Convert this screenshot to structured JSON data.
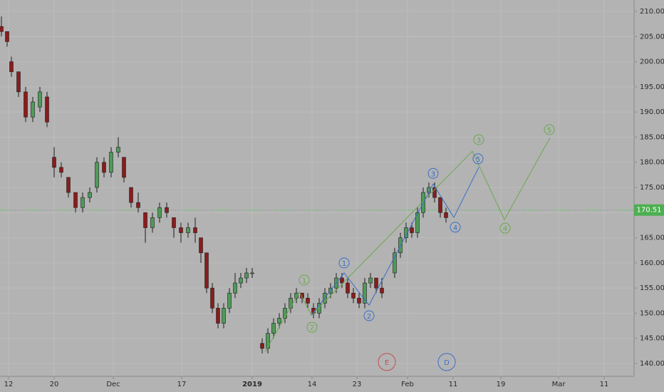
{
  "chart_data": {
    "type": "candlestick",
    "xlim": [
      0,
      89
    ],
    "ylim": [
      137.45,
      212.27
    ],
    "grid": true,
    "xticks": [
      {
        "value": 1.2,
        "label": "12"
      },
      {
        "value": 7.6,
        "label": "20"
      },
      {
        "value": 15.9,
        "label": "Dec"
      },
      {
        "value": 25.5,
        "label": "17"
      },
      {
        "value": 35.4,
        "label": "2019"
      },
      {
        "value": 43.8,
        "label": "14"
      },
      {
        "value": 50.1,
        "label": "23"
      },
      {
        "value": 57.2,
        "label": "Feb"
      },
      {
        "value": 63.6,
        "label": "11"
      },
      {
        "value": 70.3,
        "label": "19"
      },
      {
        "value": 78.4,
        "label": "Mar"
      },
      {
        "value": 84.8,
        "label": "11"
      }
    ],
    "yticks": [
      {
        "value": 140,
        "label": "140.00"
      },
      {
        "value": 145,
        "label": "145.00"
      },
      {
        "value": 150,
        "label": "150.00"
      },
      {
        "value": 155,
        "label": "155.00"
      },
      {
        "value": 160,
        "label": "160.00"
      },
      {
        "value": 165,
        "label": "165.00"
      },
      {
        "value": 170,
        "label": "170.00"
      },
      {
        "value": 175,
        "label": "175.00"
      },
      {
        "value": 180,
        "label": "180.00"
      },
      {
        "value": 185,
        "label": "185.00"
      },
      {
        "value": 190,
        "label": "190.00"
      },
      {
        "value": 195,
        "label": "195.00"
      },
      {
        "value": 200,
        "label": "200.00"
      },
      {
        "value": 205,
        "label": "205.00"
      },
      {
        "value": 210,
        "label": "210.00"
      }
    ],
    "up_color": "#4f9a58",
    "down_color": "#8a1c1c",
    "x": [
      0.2,
      1.0,
      1.6,
      2.6,
      3.6,
      4.6,
      5.6,
      6.6,
      7.6,
      8.6,
      9.6,
      10.6,
      11.6,
      12.6,
      13.6,
      14.6,
      15.6,
      16.6,
      17.4,
      18.4,
      19.4,
      20.4,
      21.4,
      22.4,
      23.4,
      24.4,
      25.4,
      26.4,
      27.4,
      28.2,
      29.0,
      29.8,
      30.6,
      31.4,
      32.2,
      33.0,
      33.8,
      34.6,
      35.4,
      36.8,
      37.6,
      38.4,
      39.2,
      40.0,
      40.8,
      41.6,
      42.4,
      43.2,
      44.0,
      44.8,
      45.6,
      46.4,
      47.2,
      48.0,
      48.8,
      49.6,
      50.4,
      51.2,
      52.0,
      52.8,
      53.6,
      55.4,
      56.2,
      57.0,
      57.8,
      58.6,
      59.4,
      60.2,
      61.0,
      61.8,
      62.6
    ],
    "open": [
      207,
      206,
      200,
      198,
      194,
      189,
      191,
      193,
      181,
      179,
      177,
      174,
      171,
      173,
      175,
      180,
      178,
      182,
      181,
      175,
      172,
      170,
      167,
      169,
      171,
      169,
      167,
      166,
      167,
      165,
      162,
      155,
      151,
      148,
      151,
      154,
      156,
      157,
      158,
      144,
      143,
      146,
      148,
      149,
      151,
      153,
      154,
      153,
      151,
      150,
      152,
      154,
      155,
      157,
      156,
      154,
      153,
      152,
      156,
      157,
      155,
      158,
      162,
      165,
      167,
      166,
      170,
      174,
      175,
      173,
      170
    ],
    "high": [
      209,
      206,
      201,
      198,
      195,
      193,
      195,
      194,
      183,
      180,
      177,
      174,
      174,
      175,
      181,
      181,
      183,
      185,
      181,
      175,
      174,
      170,
      170,
      172,
      172,
      169,
      168,
      168,
      169,
      165,
      162,
      156,
      152,
      152,
      155,
      158,
      158,
      159,
      159,
      145,
      147,
      149,
      150,
      152,
      154,
      155,
      154,
      154,
      152,
      153,
      155,
      156,
      158,
      158,
      157,
      155,
      154,
      157,
      158,
      157,
      157,
      163,
      166,
      168,
      168,
      171,
      175,
      176,
      176,
      173,
      171
    ],
    "low": [
      205,
      203,
      197,
      193,
      188,
      188,
      190,
      187,
      177,
      177,
      173,
      170,
      170,
      172,
      174,
      177,
      177,
      181,
      176,
      171,
      170,
      164,
      166,
      168,
      169,
      165,
      164,
      165,
      164,
      160,
      154,
      150,
      147,
      147,
      150,
      153,
      155,
      156,
      157,
      142,
      142,
      145,
      147,
      148,
      150,
      152,
      152,
      151,
      149,
      149,
      151,
      153,
      154,
      155,
      153,
      152,
      151,
      151,
      155,
      154,
      153,
      157,
      161,
      164,
      165,
      165,
      169,
      173,
      172,
      169,
      168
    ],
    "close": [
      206,
      204,
      198,
      194,
      189,
      192,
      194,
      188,
      179,
      178,
      174,
      171,
      173,
      174,
      180,
      178,
      182,
      183,
      177,
      172,
      171,
      167,
      169,
      171,
      170,
      167,
      166,
      167,
      166,
      162,
      155,
      151,
      148,
      151,
      154,
      156,
      157,
      158,
      158,
      143,
      146,
      148,
      149,
      151,
      153,
      154,
      153,
      152,
      150,
      152,
      154,
      155,
      157,
      156,
      154,
      153,
      152,
      156,
      157,
      155,
      154,
      162,
      165,
      167,
      166,
      170,
      174,
      175,
      173,
      170,
      169
    ],
    "last_price": {
      "value": 170.51,
      "label": "170.51",
      "color": "#4caf50"
    },
    "waves": [
      {
        "color": "#6aa84f",
        "x": [
          37.2,
          42.0,
          43.7,
          66.3,
          70.8,
          77.2
        ],
        "y": [
          142.3,
          154.2,
          149.6,
          182.2,
          168.6,
          184.9
        ]
      },
      {
        "color": "#3a6fc8",
        "x": [
          43.7,
          48.3,
          51.8,
          60.8,
          63.7,
          67.2
        ],
        "y": [
          149.6,
          158.0,
          151.6,
          175.7,
          169.05,
          179.0
        ]
      }
    ],
    "labels": [
      {
        "text": "1",
        "x": 42.7,
        "y": 156.6,
        "color": "#6aa84f"
      },
      {
        "text": "2",
        "x": 43.8,
        "y": 147.2,
        "color": "#6aa84f"
      },
      {
        "text": "3",
        "x": 67.2,
        "y": 184.5,
        "color": "#6aa84f"
      },
      {
        "text": "4",
        "x": 70.9,
        "y": 166.9,
        "color": "#6aa84f"
      },
      {
        "text": "5",
        "x": 77.1,
        "y": 186.5,
        "color": "#6aa84f"
      },
      {
        "text": "1",
        "x": 48.3,
        "y": 160.0,
        "color": "#3a6fc8"
      },
      {
        "text": "2",
        "x": 51.8,
        "y": 149.5,
        "color": "#3a6fc8"
      },
      {
        "text": "3",
        "x": 60.8,
        "y": 177.8,
        "color": "#3a6fc8"
      },
      {
        "text": "4",
        "x": 63.9,
        "y": 167.1,
        "color": "#3a6fc8"
      },
      {
        "text": "5",
        "x": 67.1,
        "y": 180.7,
        "color": "#3a6fc8"
      },
      {
        "text": "E",
        "x": 54.3,
        "y": 140.3,
        "color": "#c0504d"
      },
      {
        "text": "D",
        "x": 62.7,
        "y": 140.3,
        "color": "#3a6fc8"
      }
    ]
  }
}
